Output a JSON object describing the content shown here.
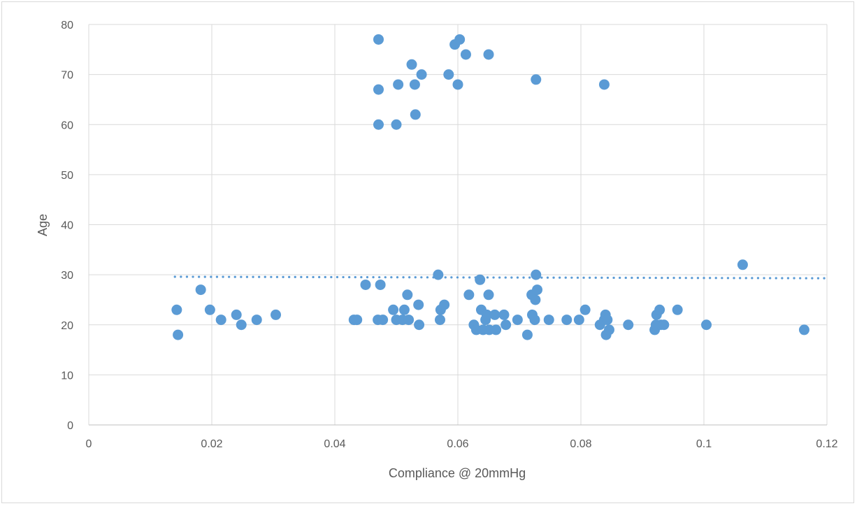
{
  "chart_data": {
    "type": "scatter",
    "title": "",
    "xlabel": "Compliance @ 20mmHg",
    "ylabel": "Age",
    "xlim": [
      0,
      0.12
    ],
    "ylim": [
      0,
      80
    ],
    "x_ticks": [
      0,
      0.02,
      0.04,
      0.06,
      0.08,
      0.1,
      0.12
    ],
    "x_tick_labels": [
      "0",
      "0.02",
      "0.04",
      "0.06",
      "0.08",
      "0.1",
      "0.12"
    ],
    "y_ticks": [
      0,
      10,
      20,
      30,
      40,
      50,
      60,
      70,
      80
    ],
    "y_tick_labels": [
      "0",
      "10",
      "20",
      "30",
      "40",
      "50",
      "60",
      "70",
      "80"
    ],
    "grid": "major gridlines on both axes",
    "legend": "none",
    "marker_color": "#5b9bd5",
    "gridline_color": "#d9d9d9",
    "trendline": {
      "type": "linear",
      "style": "dotted",
      "x": [
        0.014,
        0.12
      ],
      "y": [
        29.6,
        29.3
      ]
    },
    "series": [
      {
        "points": [
          [
            0.0143,
            23
          ],
          [
            0.0145,
            18
          ],
          [
            0.0182,
            27
          ],
          [
            0.0197,
            23
          ],
          [
            0.0215,
            21
          ],
          [
            0.024,
            22
          ],
          [
            0.0248,
            20
          ],
          [
            0.0273,
            21
          ],
          [
            0.0304,
            22
          ],
          [
            0.0431,
            21
          ],
          [
            0.0436,
            21
          ],
          [
            0.045,
            28
          ],
          [
            0.047,
            21
          ],
          [
            0.0474,
            28
          ],
          [
            0.0478,
            21
          ],
          [
            0.0495,
            23
          ],
          [
            0.05,
            21
          ],
          [
            0.051,
            21
          ],
          [
            0.0513,
            23
          ],
          [
            0.0518,
            26
          ],
          [
            0.052,
            21
          ],
          [
            0.0536,
            24
          ],
          [
            0.0537,
            20
          ],
          [
            0.0568,
            30
          ],
          [
            0.0571,
            21
          ],
          [
            0.0572,
            23
          ],
          [
            0.0578,
            24
          ],
          [
            0.0618,
            26
          ],
          [
            0.0626,
            20
          ],
          [
            0.063,
            19
          ],
          [
            0.0636,
            29
          ],
          [
            0.0638,
            23
          ],
          [
            0.0641,
            19
          ],
          [
            0.0645,
            21
          ],
          [
            0.0647,
            22
          ],
          [
            0.065,
            26
          ],
          [
            0.0651,
            19
          ],
          [
            0.066,
            22
          ],
          [
            0.0662,
            19
          ],
          [
            0.0675,
            22
          ],
          [
            0.0678,
            20
          ],
          [
            0.0697,
            21
          ],
          [
            0.0713,
            18
          ],
          [
            0.072,
            26
          ],
          [
            0.0721,
            22
          ],
          [
            0.0725,
            21
          ],
          [
            0.0726,
            25
          ],
          [
            0.0727,
            30
          ],
          [
            0.0729,
            27
          ],
          [
            0.0748,
            21
          ],
          [
            0.0777,
            21
          ],
          [
            0.0797,
            21
          ],
          [
            0.0807,
            23
          ],
          [
            0.0831,
            20
          ],
          [
            0.0838,
            21
          ],
          [
            0.084,
            22
          ],
          [
            0.0841,
            18
          ],
          [
            0.0843,
            21
          ],
          [
            0.0846,
            19
          ],
          [
            0.0877,
            20
          ],
          [
            0.092,
            19
          ],
          [
            0.0922,
            20
          ],
          [
            0.0923,
            22
          ],
          [
            0.0928,
            23
          ],
          [
            0.093,
            20
          ],
          [
            0.0935,
            20
          ],
          [
            0.0957,
            23
          ],
          [
            0.1004,
            20
          ],
          [
            0.1063,
            32
          ],
          [
            0.1163,
            19
          ],
          [
            0.0471,
            77
          ],
          [
            0.0471,
            67
          ],
          [
            0.0471,
            60
          ],
          [
            0.05,
            60
          ],
          [
            0.0503,
            68
          ],
          [
            0.0525,
            72
          ],
          [
            0.053,
            68
          ],
          [
            0.0531,
            62
          ],
          [
            0.0541,
            70
          ],
          [
            0.0585,
            70
          ],
          [
            0.0595,
            76
          ],
          [
            0.06,
            68
          ],
          [
            0.0603,
            77
          ],
          [
            0.0613,
            74
          ],
          [
            0.065,
            74
          ],
          [
            0.0727,
            69
          ],
          [
            0.0838,
            68
          ]
        ]
      }
    ]
  }
}
